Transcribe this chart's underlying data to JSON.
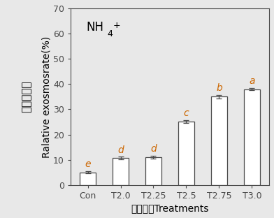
{
  "categories": [
    "Con",
    "T2.0",
    "T2.25",
    "T2.5",
    "T2.75",
    "T3.0"
  ],
  "values": [
    5.0,
    10.7,
    11.0,
    25.2,
    35.0,
    38.0
  ],
  "errors": [
    0.4,
    0.5,
    0.5,
    0.5,
    0.7,
    0.5
  ],
  "letters": [
    "e",
    "d",
    "d",
    "c",
    "b",
    "a"
  ],
  "bar_color": "#ffffff",
  "bar_edgecolor": "#4a4a4a",
  "bar_width": 0.5,
  "ylim": [
    0,
    70
  ],
  "yticks": [
    0,
    10,
    20,
    30,
    40,
    50,
    60,
    70
  ],
  "ylabel_english": "Ralative exosmosrate(%)",
  "ylabel_chinese": "细胞膜透性",
  "xlabel": "场强处理Treatments",
  "letter_color": "#cc6600",
  "letter_fontsize": 10,
  "axis_label_fontsize": 10,
  "tick_fontsize": 9,
  "bg_color": "#e8e8e8",
  "fig_bg": "#e8e8e8"
}
